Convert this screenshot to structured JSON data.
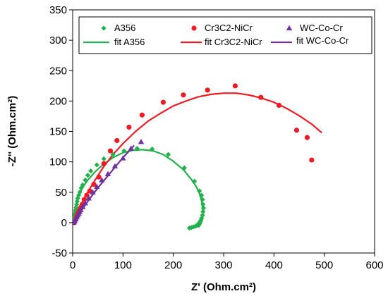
{
  "chart_data": {
    "type": "scatter",
    "xlabel": "Z' (Ohm.cm²)",
    "ylabel": "-Z'' (Ohm.cm²)",
    "xlim": [
      0,
      600
    ],
    "ylim": [
      -50,
      350
    ],
    "x_ticks": [
      "0",
      "100",
      "200",
      "300",
      "400",
      "500",
      "600"
    ],
    "y_ticks": [
      "-50",
      "0",
      "50",
      "100",
      "150",
      "200",
      "250",
      "300",
      "350"
    ],
    "grid": false,
    "legend_position": "top",
    "series": [
      {
        "name": "A356",
        "kind": "points",
        "marker": "diamond",
        "color": "#22b14c",
        "x": [
          2,
          3,
          4,
          5,
          6,
          7,
          8,
          9,
          10,
          12,
          14,
          17,
          20,
          25,
          30,
          36,
          48,
          62,
          80,
          102,
          128,
          158,
          190,
          222,
          242,
          252,
          256,
          258,
          259,
          260,
          259,
          258,
          256,
          254,
          252,
          250,
          248,
          246,
          244,
          240,
          236,
          232
        ],
        "y": [
          0,
          5,
          10,
          15,
          20,
          25,
          30,
          35,
          40,
          45,
          50,
          57,
          62,
          70,
          78,
          85,
          95,
          105,
          112,
          118,
          122,
          121,
          112,
          90,
          68,
          52,
          45,
          38,
          30,
          24,
          18,
          12,
          7,
          3,
          0,
          -2,
          -4,
          -5,
          -6,
          -7,
          -8,
          -9
        ]
      },
      {
        "name": "Cr3C2-NiCr",
        "kind": "points",
        "marker": "circle",
        "color": "#ed1c24",
        "x": [
          3,
          6,
          8,
          10,
          13,
          16,
          19,
          23,
          28,
          34,
          42,
          52,
          62,
          75,
          88,
          112,
          138,
          180,
          220,
          268,
          323,
          374,
          410,
          445,
          466,
          475
        ],
        "y": [
          0,
          5,
          10,
          15,
          20,
          25,
          30,
          38,
          45,
          52,
          63,
          75,
          97,
          118,
          135,
          157,
          177,
          198,
          210,
          218,
          225,
          206,
          193,
          152,
          140,
          103
        ]
      },
      {
        "name": "WC-Co-Cr",
        "kind": "points",
        "marker": "triangle",
        "color": "#7030a0",
        "x": [
          2,
          4,
          6,
          8,
          10,
          12,
          14,
          16,
          20,
          25,
          32,
          40,
          48,
          58,
          70,
          84,
          100,
          116,
          136
        ],
        "y": [
          0,
          3,
          6,
          9,
          12,
          15,
          18,
          21,
          26,
          32,
          40,
          50,
          59,
          70,
          80,
          93,
          106,
          122,
          133
        ]
      },
      {
        "name": "fit A356",
        "kind": "line",
        "color": "#22b14c",
        "x": [
          0,
          5,
          10,
          20,
          30,
          45,
          60,
          80,
          100,
          120,
          140,
          160,
          180,
          200,
          220,
          235,
          245,
          252,
          256,
          258,
          259,
          258,
          255,
          250
        ],
        "y": [
          0,
          25,
          40,
          58,
          70,
          84,
          95,
          107,
          115,
          119,
          120,
          118,
          112,
          101,
          87,
          72,
          60,
          48,
          36,
          25,
          15,
          5,
          -2,
          -8
        ]
      },
      {
        "name": "fit Cr3C2-NiCr",
        "kind": "line",
        "color": "#ed1c24",
        "x": [
          0,
          10,
          20,
          30,
          40,
          50,
          60,
          80,
          100,
          125,
          150,
          175,
          200,
          225,
          250,
          275,
          300,
          325,
          350,
          375,
          400,
          425,
          450,
          475,
          495
        ],
        "y": [
          0,
          18,
          35,
          50,
          64,
          77,
          90,
          112,
          130,
          150,
          167,
          180,
          192,
          200,
          207,
          211,
          213,
          213,
          210,
          205,
          198,
          188,
          176,
          162,
          148
        ]
      },
      {
        "name": "fit WC-Co-Cr",
        "kind": "line",
        "color": "#7030a0",
        "x": [
          0,
          10,
          20,
          30,
          40,
          50,
          60,
          70,
          80,
          90,
          100,
          110,
          122
        ],
        "y": [
          0,
          11,
          23,
          35,
          46,
          57,
          67,
          77,
          87,
          97,
          107,
          116,
          127
        ]
      }
    ]
  }
}
